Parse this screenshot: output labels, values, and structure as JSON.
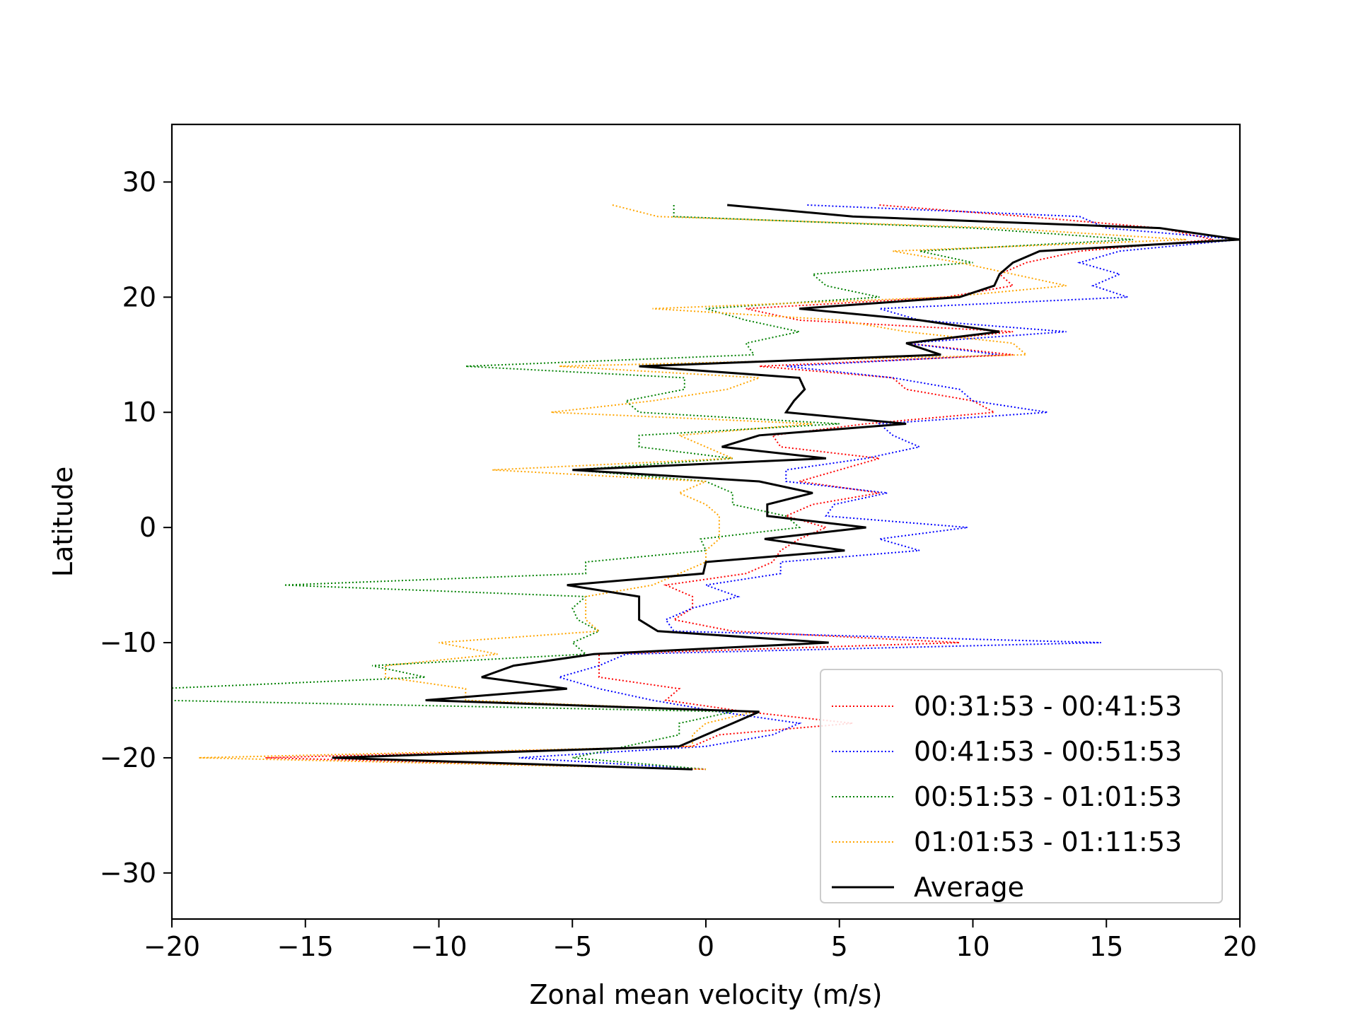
{
  "chart_data": {
    "type": "line",
    "title": "",
    "xlabel": "Zonal mean velocity (m/s)",
    "ylabel": "Latitude",
    "xlim": [
      -20,
      20
    ],
    "ylim": [
      -34,
      35
    ],
    "xticks": [
      -20,
      -15,
      -10,
      -5,
      0,
      5,
      10,
      15,
      20
    ],
    "xtick_labels": [
      "−20",
      "−15",
      "−10",
      "−5",
      "0",
      "5",
      "10",
      "15",
      "20"
    ],
    "yticks": [
      -30,
      -20,
      -10,
      0,
      10,
      20,
      30
    ],
    "ytick_labels": [
      "−30",
      "−20",
      "−10",
      "0",
      "10",
      "20",
      "30"
    ],
    "grid": false,
    "legend_position": "lower-right",
    "y": [
      28,
      27,
      26,
      25,
      24,
      23,
      22,
      21,
      20,
      19,
      18,
      17,
      16,
      15,
      14,
      13,
      12,
      11,
      10,
      9,
      8,
      7,
      6,
      5,
      4,
      3,
      2,
      1,
      0,
      -1,
      -2,
      -3,
      -4,
      -5,
      -6,
      -7,
      -8,
      -9,
      -10,
      -11,
      -12,
      -13,
      -14,
      -15,
      -16,
      -17,
      -18,
      -19,
      -20,
      -21
    ],
    "series": [
      {
        "name": "00:31:53 - 00:41:53",
        "color": "#ff0000",
        "style": "dotted",
        "values": [
          6.5,
          12,
          17,
          19,
          14,
          12,
          11,
          11.5,
          9,
          1.5,
          3.5,
          11.5,
          7.5,
          11.5,
          2,
          7,
          7.5,
          10,
          10.8,
          6,
          2.5,
          2.8,
          6.5,
          5,
          3.5,
          6.5,
          4,
          3,
          4.5,
          3.5,
          2.8,
          2.5,
          1.5,
          -1.5,
          -0.5,
          -0.5,
          -1.2,
          1,
          9.5,
          -4,
          -4,
          -4,
          -1,
          -1.5,
          1.5,
          5.5,
          0.5,
          -0.5,
          -16.5,
          0
        ]
      },
      {
        "name": "00:41:53 - 00:51:53",
        "color": "#0000ff",
        "style": "dotted",
        "values": [
          3.8,
          14,
          15,
          20,
          15.5,
          14,
          15.5,
          14.5,
          15.8,
          6.5,
          8,
          13.5,
          7.5,
          11,
          3,
          7,
          9.5,
          10,
          12.8,
          6.5,
          7,
          8,
          6,
          3,
          3,
          6.8,
          4.8,
          4.5,
          9.8,
          6.5,
          8,
          2.8,
          2.8,
          0,
          1.2,
          -0.5,
          -1.5,
          -1.2,
          14.8,
          -3,
          -4,
          -5.5,
          -4,
          -2,
          0.5,
          3.5,
          2.5,
          0,
          -7,
          0
        ]
      },
      {
        "name": "00:51:53 - 01:01:53",
        "color": "#008000",
        "style": "dotted",
        "values": [
          -1.2,
          -1.2,
          10,
          16,
          8,
          10,
          4,
          4.5,
          6.5,
          0,
          1.5,
          3.5,
          1.5,
          1.8,
          -9,
          -0.8,
          -0.8,
          -3,
          -2.5,
          5,
          -2.5,
          -2.5,
          1,
          -5,
          0,
          1,
          1,
          3,
          3.5,
          -0.2,
          0,
          -4.5,
          -4.5,
          -15.8,
          -4.5,
          -5,
          -4.8,
          -4,
          -5,
          -4.5,
          -12.5,
          -10.5,
          -20.5,
          -20.5,
          1,
          -1,
          -1,
          -3,
          -5,
          0
        ]
      },
      {
        "name": "01:01:53 - 01:11:53",
        "color": "#ffa500",
        "style": "dotted",
        "values": [
          -3.5,
          -1.8,
          11,
          18,
          7,
          9.5,
          11.5,
          13.5,
          9,
          -2,
          5,
          7.5,
          11.5,
          12,
          -5.5,
          2,
          0.8,
          -2,
          -5.8,
          4,
          -1,
          0,
          1,
          -8,
          0,
          -1,
          0,
          0.5,
          0.5,
          0.5,
          0,
          0,
          -1,
          -2,
          -4.5,
          -4.5,
          -4.5,
          -4,
          -10,
          -7.8,
          -12,
          -12,
          -9,
          -9,
          1.8,
          0,
          -0.5,
          -0.5,
          -19,
          0
        ]
      },
      {
        "name": "Average",
        "color": "#000000",
        "style": "solid",
        "values": [
          0.8,
          5.5,
          17,
          20,
          12.5,
          11.5,
          11,
          10.8,
          9.5,
          3.5,
          8,
          11,
          7.5,
          8.8,
          -2.5,
          3.5,
          3.7,
          3.3,
          3,
          7.5,
          2,
          0.6,
          4.5,
          -5,
          2,
          4,
          2.3,
          2.3,
          6,
          2.2,
          5.2,
          0,
          -0.1,
          -5.2,
          -2.5,
          -2.5,
          -2.5,
          -1.8,
          4.6,
          -4.2,
          -7.2,
          -8.4,
          -5.2,
          -10.5,
          2,
          1,
          0,
          -1,
          -14,
          -0.5
        ]
      }
    ]
  }
}
